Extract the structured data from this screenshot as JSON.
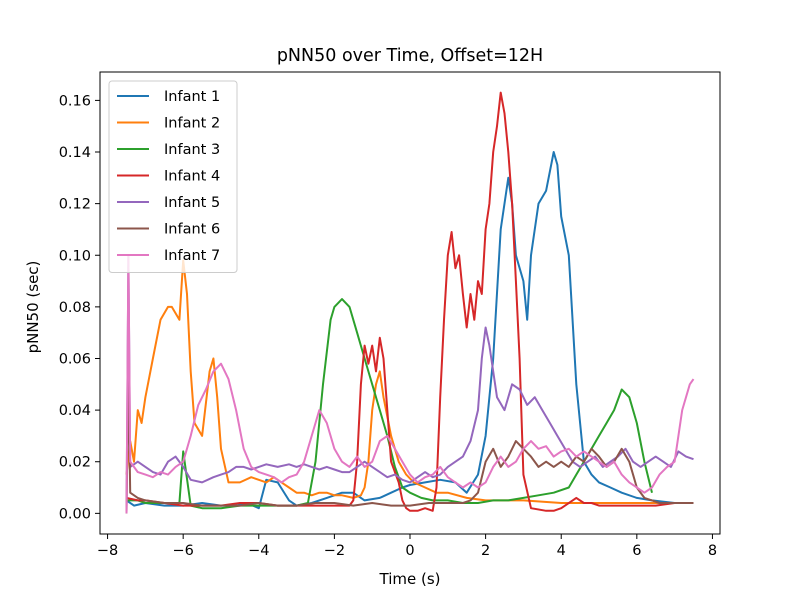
{
  "chart_data": {
    "type": "line",
    "title": "pNN50 over Time, Offset=12H",
    "xlabel": "Time (s)",
    "ylabel": "pNN50 (sec)",
    "xlim": [
      -8.2,
      8.2
    ],
    "ylim": [
      -0.008,
      0.171
    ],
    "xticks": [
      -8,
      -6,
      -4,
      -2,
      0,
      2,
      4,
      6,
      8
    ],
    "xtick_labels": [
      "−8",
      "−6",
      "−4",
      "−2",
      "0",
      "2",
      "4",
      "6",
      "8"
    ],
    "yticks": [
      0.0,
      0.02,
      0.04,
      0.06,
      0.08,
      0.1,
      0.12,
      0.14,
      0.16
    ],
    "ytick_labels": [
      "0.00",
      "0.02",
      "0.04",
      "0.06",
      "0.08",
      "0.10",
      "0.12",
      "0.14",
      "0.16"
    ],
    "grid": false,
    "legend_position": "top-left",
    "series": [
      {
        "name": "Infant 1",
        "color": "#1f77b4",
        "x": [
          -7.5,
          -7.3,
          -7.0,
          -6.5,
          -6.0,
          -5.5,
          -5.0,
          -4.6,
          -4.3,
          -4.0,
          -3.8,
          -3.5,
          -3.2,
          -3.0,
          -2.6,
          -2.2,
          -1.8,
          -1.5,
          -1.2,
          -0.8,
          -0.5,
          -0.2,
          0.0,
          0.4,
          0.8,
          1.2,
          1.5,
          1.8,
          2.0,
          2.2,
          2.4,
          2.6,
          2.7,
          2.8,
          3.0,
          3.1,
          3.2,
          3.4,
          3.6,
          3.8,
          3.9,
          4.0,
          4.2,
          4.4,
          4.6,
          4.8,
          5.0,
          5.3,
          5.6,
          6.0,
          6.4,
          7.0,
          7.5
        ],
        "y": [
          0.005,
          0.003,
          0.004,
          0.003,
          0.003,
          0.004,
          0.003,
          0.003,
          0.004,
          0.002,
          0.013,
          0.012,
          0.005,
          0.003,
          0.004,
          0.006,
          0.008,
          0.008,
          0.005,
          0.006,
          0.008,
          0.01,
          0.011,
          0.012,
          0.013,
          0.012,
          0.008,
          0.015,
          0.03,
          0.06,
          0.11,
          0.13,
          0.12,
          0.1,
          0.09,
          0.075,
          0.1,
          0.12,
          0.125,
          0.14,
          0.135,
          0.115,
          0.1,
          0.05,
          0.02,
          0.015,
          0.012,
          0.01,
          0.008,
          0.006,
          0.005,
          0.004,
          0.004
        ]
      },
      {
        "name": "Infant 2",
        "color": "#ff7f0e",
        "x": [
          -7.5,
          -7.4,
          -7.3,
          -7.2,
          -7.1,
          -7.0,
          -6.8,
          -6.6,
          -6.4,
          -6.3,
          -6.1,
          -6.0,
          -5.9,
          -5.8,
          -5.7,
          -5.5,
          -5.3,
          -5.2,
          -5.1,
          -5.0,
          -4.8,
          -4.5,
          -4.2,
          -4.0,
          -3.8,
          -3.6,
          -3.4,
          -3.2,
          -3.0,
          -2.8,
          -2.6,
          -2.4,
          -2.2,
          -2.0,
          -1.8,
          -1.5,
          -1.3,
          -1.2,
          -1.1,
          -1.0,
          -0.9,
          -0.8,
          -0.7,
          -0.5,
          -0.3,
          -0.1,
          0.1,
          0.4,
          0.7,
          1.0,
          1.5,
          2.0,
          3.0,
          4.0,
          5.0,
          6.0,
          7.0,
          7.5
        ],
        "y": [
          0.015,
          0.028,
          0.02,
          0.04,
          0.035,
          0.045,
          0.06,
          0.075,
          0.08,
          0.08,
          0.075,
          0.098,
          0.085,
          0.055,
          0.035,
          0.03,
          0.055,
          0.06,
          0.045,
          0.025,
          0.012,
          0.012,
          0.014,
          0.013,
          0.012,
          0.014,
          0.012,
          0.01,
          0.008,
          0.008,
          0.007,
          0.008,
          0.008,
          0.007,
          0.007,
          0.006,
          0.007,
          0.01,
          0.02,
          0.04,
          0.05,
          0.055,
          0.045,
          0.03,
          0.02,
          0.015,
          0.012,
          0.01,
          0.008,
          0.008,
          0.006,
          0.005,
          0.005,
          0.004,
          0.004,
          0.004,
          0.004,
          0.004
        ]
      },
      {
        "name": "Infant 3",
        "color": "#2ca02c",
        "x": [
          -7.5,
          -7.2,
          -7.0,
          -6.5,
          -6.1,
          -6.0,
          -5.8,
          -5.5,
          -5.0,
          -4.5,
          -4.0,
          -3.5,
          -3.0,
          -2.7,
          -2.5,
          -2.3,
          -2.1,
          -2.0,
          -1.8,
          -1.6,
          -1.4,
          -1.2,
          -1.0,
          -0.8,
          -0.6,
          -0.4,
          -0.2,
          0.0,
          0.3,
          0.6,
          1.0,
          1.4,
          1.8,
          2.2,
          2.6,
          3.0,
          3.4,
          3.8,
          4.2,
          4.4,
          4.6,
          4.8,
          5.0,
          5.2,
          5.4,
          5.6,
          5.8,
          6.0,
          6.2,
          6.4
        ],
        "y": [
          0.005,
          0.005,
          0.004,
          0.004,
          0.004,
          0.024,
          0.003,
          0.002,
          0.002,
          0.003,
          0.003,
          0.003,
          0.003,
          0.004,
          0.02,
          0.05,
          0.075,
          0.08,
          0.083,
          0.08,
          0.07,
          0.06,
          0.05,
          0.04,
          0.03,
          0.018,
          0.01,
          0.008,
          0.006,
          0.005,
          0.005,
          0.004,
          0.004,
          0.005,
          0.005,
          0.006,
          0.007,
          0.008,
          0.01,
          0.015,
          0.02,
          0.025,
          0.03,
          0.035,
          0.04,
          0.048,
          0.045,
          0.035,
          0.02,
          0.008
        ]
      },
      {
        "name": "Infant 4",
        "color": "#d62728",
        "x": [
          -7.5,
          -7.2,
          -7.0,
          -6.5,
          -6.0,
          -5.5,
          -5.0,
          -4.5,
          -4.0,
          -3.5,
          -3.0,
          -2.5,
          -2.0,
          -1.6,
          -1.5,
          -1.4,
          -1.3,
          -1.2,
          -1.1,
          -1.0,
          -0.9,
          -0.8,
          -0.7,
          -0.6,
          -0.5,
          -0.3,
          -0.2,
          -0.1,
          0.0,
          0.2,
          0.4,
          0.6,
          0.7,
          0.8,
          0.9,
          1.0,
          1.1,
          1.2,
          1.3,
          1.4,
          1.5,
          1.6,
          1.7,
          1.8,
          1.9,
          2.0,
          2.1,
          2.2,
          2.3,
          2.4,
          2.5,
          2.6,
          2.7,
          2.8,
          2.9,
          3.0,
          3.2,
          3.6,
          3.8,
          4.0,
          4.4,
          4.6,
          4.8,
          5.0,
          5.5,
          6.0,
          6.5,
          7.0,
          7.5
        ],
        "y": [
          0.006,
          0.005,
          0.005,
          0.004,
          0.003,
          0.003,
          0.003,
          0.004,
          0.004,
          0.003,
          0.003,
          0.003,
          0.003,
          0.003,
          0.005,
          0.02,
          0.05,
          0.065,
          0.058,
          0.065,
          0.055,
          0.068,
          0.06,
          0.04,
          0.02,
          0.012,
          0.005,
          0.002,
          0.001,
          0.001,
          0.002,
          0.001,
          0.01,
          0.045,
          0.075,
          0.1,
          0.109,
          0.095,
          0.1,
          0.085,
          0.072,
          0.085,
          0.075,
          0.09,
          0.085,
          0.11,
          0.12,
          0.14,
          0.15,
          0.163,
          0.155,
          0.14,
          0.12,
          0.09,
          0.06,
          0.015,
          0.002,
          0.001,
          0.001,
          0.002,
          0.006,
          0.004,
          0.004,
          0.003,
          0.003,
          0.003,
          0.003,
          0.004,
          0.004
        ]
      },
      {
        "name": "Infant 5",
        "color": "#9467bd",
        "x": [
          -7.5,
          -7.45,
          -7.4,
          -7.2,
          -7.0,
          -6.8,
          -6.6,
          -6.4,
          -6.2,
          -6.0,
          -5.8,
          -5.5,
          -5.2,
          -5.0,
          -4.8,
          -4.6,
          -4.4,
          -4.2,
          -4.0,
          -3.8,
          -3.5,
          -3.2,
          -3.0,
          -2.8,
          -2.6,
          -2.4,
          -2.2,
          -2.0,
          -1.8,
          -1.6,
          -1.4,
          -1.2,
          -1.0,
          -0.8,
          -0.6,
          -0.4,
          -0.2,
          0.0,
          0.2,
          0.4,
          0.6,
          0.8,
          1.0,
          1.2,
          1.4,
          1.6,
          1.8,
          1.9,
          2.0,
          2.1,
          2.2,
          2.3,
          2.5,
          2.7,
          2.9,
          3.1,
          3.3,
          3.5,
          3.7,
          3.9,
          4.1,
          4.3,
          4.5,
          4.7,
          4.9,
          5.1,
          5.3,
          5.5,
          5.7,
          5.9,
          6.1,
          6.3,
          6.5,
          6.7,
          6.9,
          7.1,
          7.3,
          7.5
        ],
        "y": [
          0.0,
          0.1,
          0.018,
          0.02,
          0.018,
          0.016,
          0.015,
          0.02,
          0.022,
          0.018,
          0.013,
          0.012,
          0.014,
          0.015,
          0.016,
          0.018,
          0.018,
          0.017,
          0.018,
          0.019,
          0.018,
          0.019,
          0.018,
          0.019,
          0.018,
          0.017,
          0.018,
          0.017,
          0.016,
          0.016,
          0.018,
          0.02,
          0.018,
          0.016,
          0.014,
          0.015,
          0.013,
          0.012,
          0.014,
          0.016,
          0.014,
          0.015,
          0.018,
          0.02,
          0.022,
          0.028,
          0.04,
          0.06,
          0.072,
          0.065,
          0.055,
          0.045,
          0.04,
          0.05,
          0.048,
          0.042,
          0.045,
          0.04,
          0.035,
          0.03,
          0.025,
          0.02,
          0.018,
          0.02,
          0.022,
          0.018,
          0.02,
          0.022,
          0.025,
          0.02,
          0.018,
          0.02,
          0.022,
          0.02,
          0.018,
          0.024,
          0.022,
          0.021
        ]
      },
      {
        "name": "Infant 6",
        "color": "#8c564b",
        "x": [
          -7.5,
          -7.45,
          -7.4,
          -7.2,
          -7.0,
          -6.5,
          -6.0,
          -5.5,
          -5.0,
          -4.5,
          -4.0,
          -3.5,
          -3.0,
          -2.5,
          -2.0,
          -1.5,
          -1.0,
          -0.5,
          0.0,
          0.5,
          1.0,
          1.4,
          1.6,
          1.8,
          2.0,
          2.2,
          2.4,
          2.6,
          2.8,
          3.0,
          3.2,
          3.4,
          3.6,
          3.8,
          4.0,
          4.2,
          4.4,
          4.6,
          4.8,
          5.0,
          5.2,
          5.4,
          5.6,
          5.8,
          6.0,
          6.2,
          6.4,
          6.6,
          6.8,
          7.0,
          7.2,
          7.5
        ],
        "y": [
          0.0,
          0.055,
          0.008,
          0.006,
          0.005,
          0.004,
          0.004,
          0.003,
          0.003,
          0.003,
          0.004,
          0.003,
          0.003,
          0.004,
          0.004,
          0.003,
          0.004,
          0.003,
          0.003,
          0.004,
          0.004,
          0.004,
          0.005,
          0.008,
          0.02,
          0.025,
          0.018,
          0.022,
          0.028,
          0.025,
          0.022,
          0.018,
          0.02,
          0.018,
          0.02,
          0.018,
          0.022,
          0.02,
          0.025,
          0.022,
          0.018,
          0.02,
          0.025,
          0.02,
          0.01,
          0.006,
          0.005,
          0.004,
          0.004,
          0.004,
          0.004,
          0.004
        ]
      },
      {
        "name": "Infant 7",
        "color": "#e377c2",
        "x": [
          -7.5,
          -7.45,
          -7.4,
          -7.2,
          -7.0,
          -6.8,
          -6.6,
          -6.4,
          -6.2,
          -6.0,
          -5.8,
          -5.6,
          -5.4,
          -5.2,
          -5.0,
          -4.8,
          -4.6,
          -4.4,
          -4.2,
          -4.0,
          -3.8,
          -3.6,
          -3.4,
          -3.2,
          -3.0,
          -2.8,
          -2.6,
          -2.4,
          -2.2,
          -2.0,
          -1.8,
          -1.6,
          -1.4,
          -1.2,
          -1.0,
          -0.8,
          -0.6,
          -0.4,
          -0.2,
          0.0,
          0.2,
          0.4,
          0.6,
          0.8,
          1.0,
          1.2,
          1.4,
          1.6,
          1.8,
          2.0,
          2.2,
          2.4,
          2.6,
          2.8,
          3.0,
          3.2,
          3.4,
          3.6,
          3.8,
          4.0,
          4.2,
          4.4,
          4.6,
          4.8,
          5.0,
          5.2,
          5.4,
          5.6,
          5.8,
          6.0,
          6.2,
          6.4,
          6.6,
          6.8,
          7.0,
          7.2,
          7.4,
          7.5
        ],
        "y": [
          0.0,
          0.1,
          0.02,
          0.016,
          0.015,
          0.014,
          0.016,
          0.015,
          0.018,
          0.02,
          0.03,
          0.042,
          0.048,
          0.055,
          0.058,
          0.052,
          0.04,
          0.025,
          0.018,
          0.016,
          0.015,
          0.014,
          0.012,
          0.014,
          0.015,
          0.02,
          0.03,
          0.04,
          0.035,
          0.025,
          0.02,
          0.018,
          0.022,
          0.018,
          0.02,
          0.028,
          0.03,
          0.025,
          0.02,
          0.015,
          0.012,
          0.014,
          0.015,
          0.018,
          0.014,
          0.012,
          0.01,
          0.012,
          0.01,
          0.012,
          0.018,
          0.022,
          0.018,
          0.02,
          0.025,
          0.028,
          0.025,
          0.026,
          0.022,
          0.024,
          0.025,
          0.022,
          0.024,
          0.022,
          0.02,
          0.018,
          0.02,
          0.015,
          0.012,
          0.01,
          0.008,
          0.01,
          0.015,
          0.018,
          0.02,
          0.04,
          0.05,
          0.052
        ]
      }
    ]
  }
}
